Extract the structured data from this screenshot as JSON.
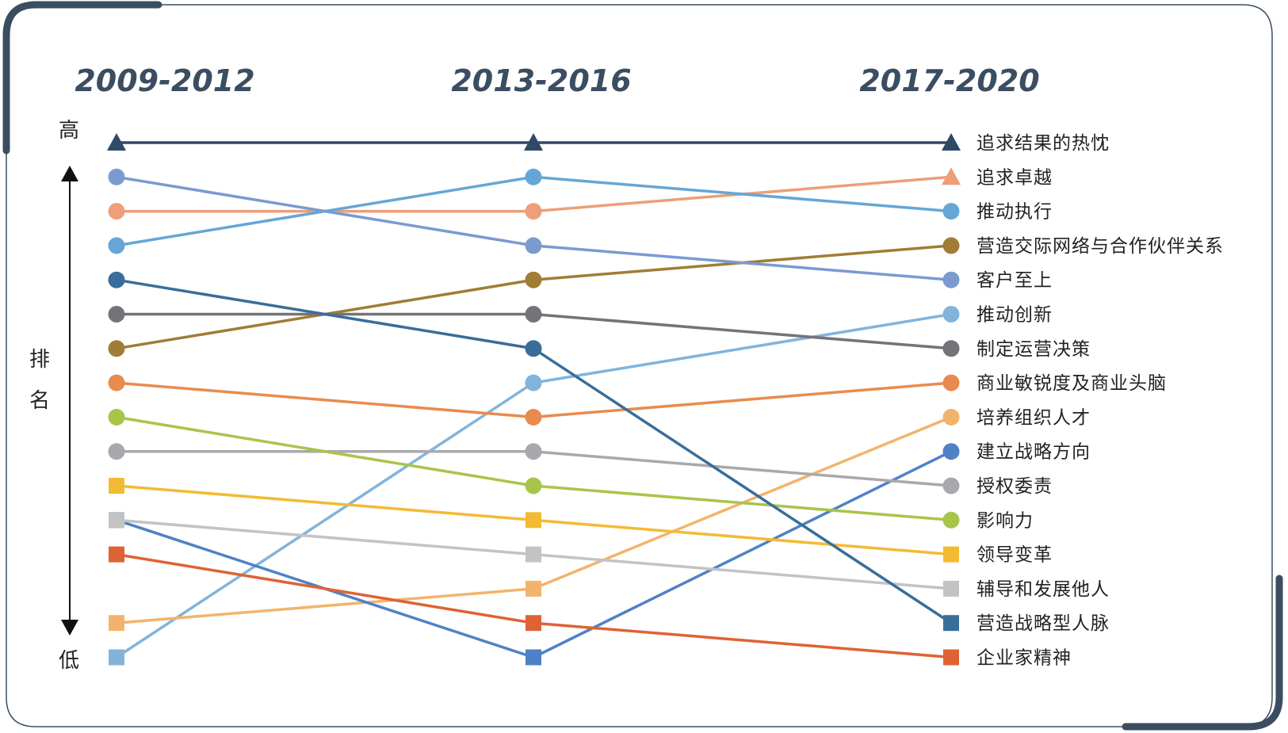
{
  "chart_data": {
    "type": "line",
    "periods": [
      "2009-2012",
      "2013-2016",
      "2017-2020"
    ],
    "rank_axis": {
      "label": "排名",
      "high": "高",
      "low": "低"
    },
    "rank_levels": 16,
    "series": [
      {
        "name": "追求结果的热忱",
        "color": "#2e4a66",
        "marker": "triangle",
        "ranks": [
          1,
          1,
          1
        ]
      },
      {
        "name": "追求卓越",
        "color": "#ee9e78",
        "marker": "circle",
        "marker_last": "triangle",
        "ranks": [
          3,
          3,
          2
        ]
      },
      {
        "name": "推动执行",
        "color": "#65a6d6",
        "marker": "circle",
        "ranks": [
          4,
          2,
          3
        ]
      },
      {
        "name": "营造交际网络与合作伙伴关系",
        "color": "#a07d35",
        "marker": "circle",
        "ranks": [
          7,
          5,
          4
        ]
      },
      {
        "name": "客户至上",
        "color": "#7a9ad0",
        "marker": "circle",
        "ranks": [
          2,
          4,
          5
        ]
      },
      {
        "name": "推动创新",
        "color": "#82b4db",
        "marker": "circle",
        "marker_first": "square",
        "ranks": [
          16,
          8,
          6
        ]
      },
      {
        "name": "制定运营决策",
        "color": "#737378",
        "marker": "circle",
        "ranks": [
          6,
          6,
          7
        ]
      },
      {
        "name": "商业敏锐度及商业头脑",
        "color": "#e98b4e",
        "marker": "circle",
        "ranks": [
          8,
          9,
          8
        ]
      },
      {
        "name": "培养组织人才",
        "color": "#f2b46c",
        "marker": "square",
        "marker_last": "circle",
        "ranks": [
          15,
          14,
          9
        ]
      },
      {
        "name": "建立战略方向",
        "color": "#4f81c7",
        "marker": "square",
        "marker_last": "circle",
        "ranks": [
          12,
          16,
          10
        ]
      },
      {
        "name": "授权委责",
        "color": "#a9a9ad",
        "marker": "circle",
        "ranks": [
          10,
          10,
          11
        ]
      },
      {
        "name": "影响力",
        "color": "#a8c54a",
        "marker": "circle",
        "ranks": [
          9,
          11,
          12
        ]
      },
      {
        "name": "领导变革",
        "color": "#f3bb33",
        "marker": "square",
        "ranks": [
          11,
          12,
          13
        ]
      },
      {
        "name": "辅导和发展他人",
        "color": "#c3c3c6",
        "marker": "square",
        "ranks": [
          12,
          13,
          14
        ]
      },
      {
        "name": "营造战略型人脉",
        "color": "#3a6d99",
        "marker": "circle",
        "marker_last": "square",
        "ranks": [
          5,
          7,
          15
        ]
      },
      {
        "name": "企业家精神",
        "color": "#df6235",
        "marker": "square",
        "ranks": [
          13,
          15,
          16
        ]
      }
    ]
  },
  "frame": {
    "border_color": "#3b4d61"
  }
}
